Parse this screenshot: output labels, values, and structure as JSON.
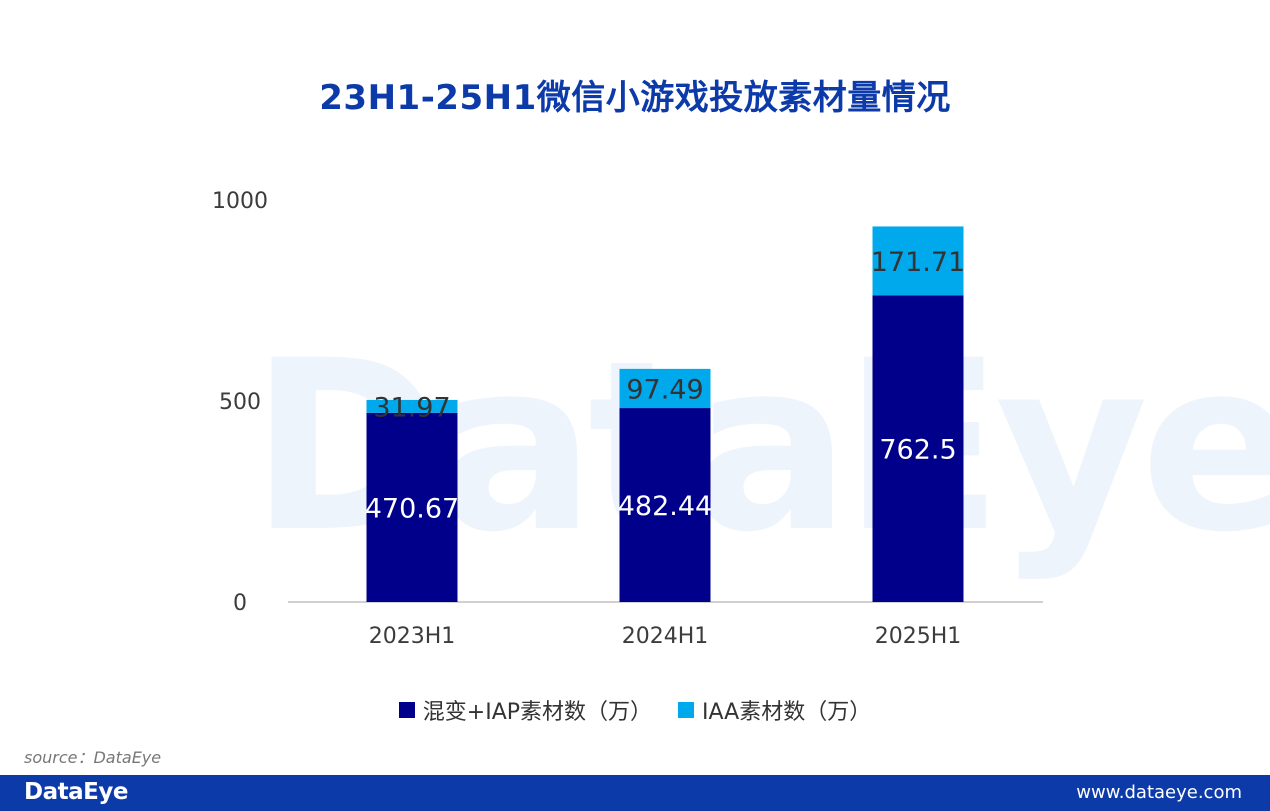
{
  "title": "23H1-25H1微信小游戏投放素材量情况",
  "watermark": "DataEye",
  "source": "source：DataEye",
  "footer": {
    "logo": "DataEye",
    "url": "www.dataeye.com"
  },
  "colors": {
    "title": "#0d3aa9",
    "series1": "#00008b",
    "series2": "#00a8ec",
    "footer": "#0d3aa9"
  },
  "chart_data": {
    "type": "bar",
    "stacked": true,
    "categories": [
      "2023H1",
      "2024H1",
      "2025H1"
    ],
    "series": [
      {
        "name": "混变+IAP素材数（万）",
        "values": [
          470.67,
          482.44,
          762.5
        ],
        "color": "#00008b",
        "label_color": "#ffffff"
      },
      {
        "name": "IAA素材数（万）",
        "values": [
          31.97,
          97.49,
          171.71
        ],
        "color": "#00a8ec",
        "label_color": "#333333"
      }
    ],
    "yticks": [
      0,
      500,
      1000
    ],
    "ylim": [
      0,
      1000
    ],
    "grid": false,
    "legend": "bottom"
  }
}
